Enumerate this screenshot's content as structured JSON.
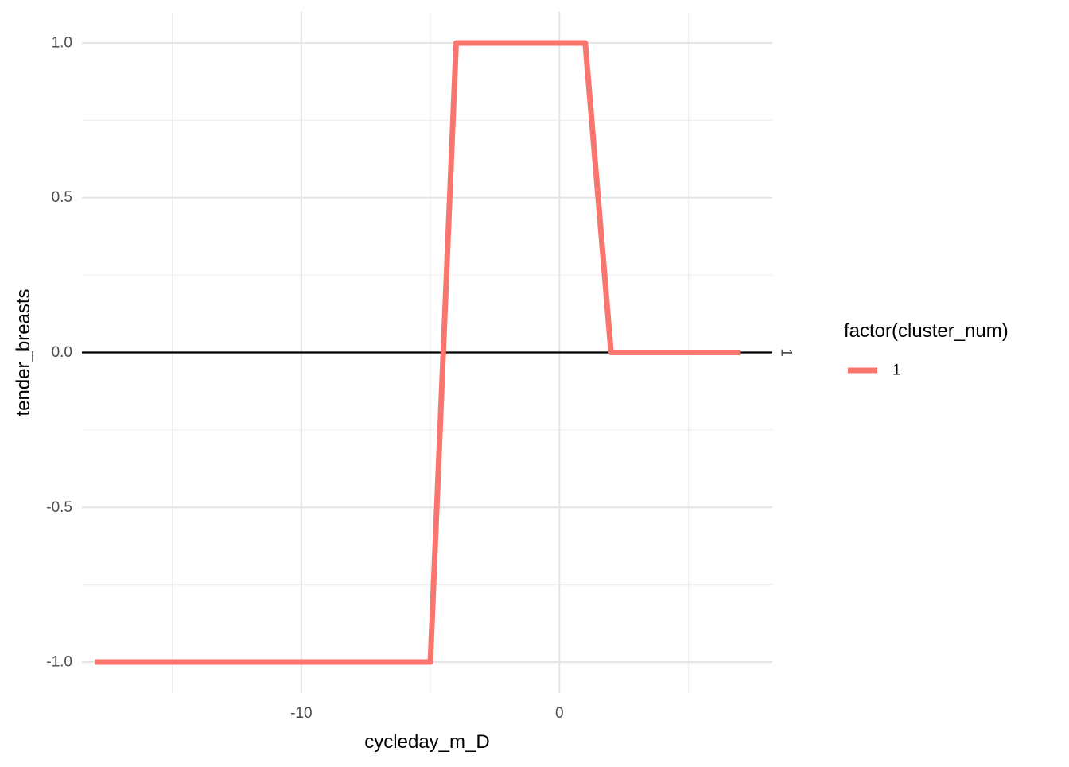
{
  "chart_data": {
    "type": "line",
    "xlabel": "cycleday_m_D",
    "ylabel": "tender_breasts",
    "xlim": [
      -18.5,
      8.25
    ],
    "ylim": [
      -1.1,
      1.1
    ],
    "x_ticks": [
      -10,
      0
    ],
    "x_tick_labels": [
      "-10",
      "0"
    ],
    "y_ticks": [
      -1.0,
      -0.5,
      0.0,
      0.5,
      1.0
    ],
    "y_tick_labels": [
      "-1.0",
      "-0.5",
      "0.0",
      "0.5",
      "1.0"
    ],
    "grid": true,
    "legend": {
      "title": "factor(cluster_num)",
      "position": "right",
      "entries": [
        {
          "label": "1",
          "color": "#F8766D"
        }
      ]
    },
    "reference_line": {
      "y": 0,
      "color": "#000000",
      "label": "1"
    },
    "series": [
      {
        "name": "1",
        "color": "#F8766D",
        "x": [
          -18,
          -17,
          -16,
          -15,
          -14,
          -13,
          -12,
          -11,
          -10,
          -9,
          -8,
          -7,
          -6,
          -5,
          -4,
          -3,
          -2,
          -1,
          0,
          1,
          2,
          3,
          4,
          5,
          6,
          7
        ],
        "y": [
          -1,
          -1,
          -1,
          -1,
          -1,
          -1,
          -1,
          -1,
          -1,
          -1,
          -1,
          -1,
          -1,
          -1,
          1,
          1,
          1,
          1,
          1,
          1,
          0,
          0,
          0,
          0,
          0,
          0
        ]
      }
    ]
  }
}
